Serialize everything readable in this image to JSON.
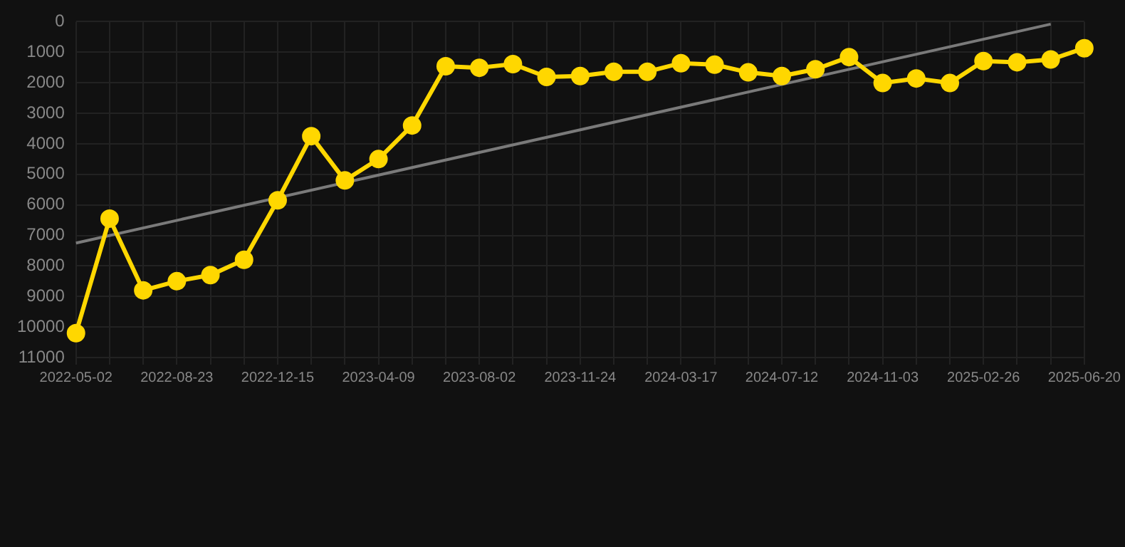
{
  "chart_data": {
    "type": "line",
    "categories": [
      "2022-05-02",
      null,
      null,
      "2022-08-23",
      null,
      null,
      "2022-12-15",
      null,
      null,
      "2023-04-09",
      null,
      null,
      "2023-08-02",
      null,
      null,
      "2023-11-24",
      null,
      null,
      "2024-03-17",
      null,
      null,
      "2024-07-12",
      null,
      null,
      "2024-11-03",
      null,
      null,
      "2025-02-26",
      null,
      null,
      "2025-06-20"
    ],
    "series": [
      {
        "color": "#ffd700",
        "marker": "circle",
        "values": [
          10200,
          6450,
          8800,
          8500,
          8300,
          7800,
          5850,
          3750,
          5200,
          4500,
          3400,
          1460,
          1510,
          1390,
          1810,
          1780,
          1640,
          1640,
          1360,
          1410,
          1660,
          1780,
          1560,
          1160,
          2010,
          1860,
          2010,
          1290,
          1330,
          1240,
          870
        ]
      },
      {
        "color": "#7a7a7a",
        "marker": "none",
        "values": [
          7250,
          null,
          null,
          null,
          null,
          null,
          null,
          null,
          null,
          null,
          null,
          null,
          null,
          null,
          null,
          null,
          null,
          null,
          null,
          null,
          null,
          null,
          null,
          null,
          null,
          null,
          null,
          null,
          null,
          80,
          null
        ]
      }
    ],
    "ylim": [
      11000,
      0
    ],
    "yticks": [
      0,
      1000,
      2000,
      3000,
      4000,
      5000,
      6000,
      7000,
      8000,
      9000,
      10000,
      11000
    ],
    "grid": true,
    "legend": false
  }
}
